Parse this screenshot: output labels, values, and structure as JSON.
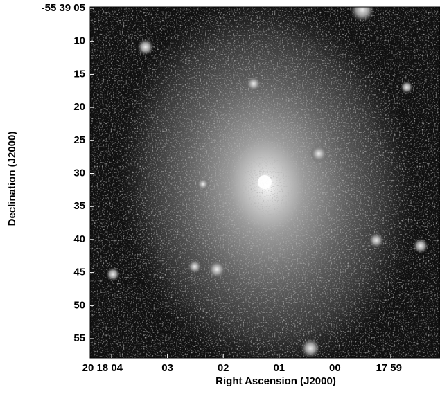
{
  "image": {
    "x_label": "Right Ascension (J2000)",
    "y_label": "Declination (J2000)",
    "x_tick_labels": [
      "20 18 04",
      "03",
      "02",
      "01",
      "00",
      "17 59"
    ],
    "y_tick_labels": [
      "-55 39 05",
      "10",
      "15",
      "20",
      "25",
      "30",
      "35",
      "40",
      "45",
      "50",
      "55"
    ]
  }
}
